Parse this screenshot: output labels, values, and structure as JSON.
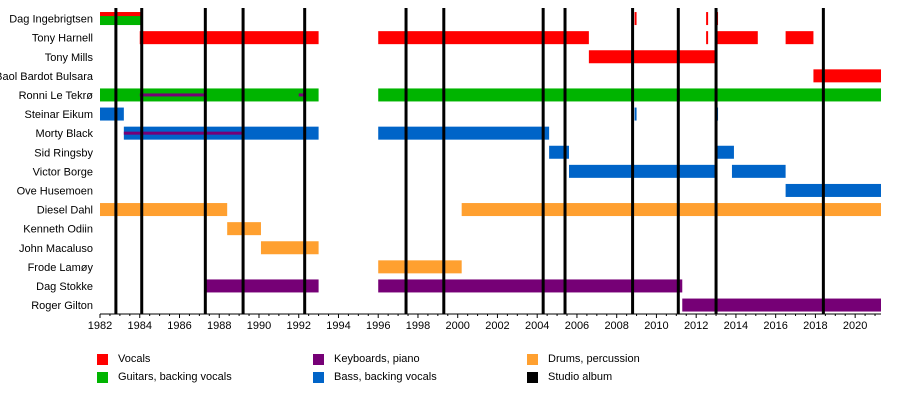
{
  "chart_data": {
    "type": "timeline",
    "title": "",
    "xlabel": "",
    "ylabel": "",
    "xlim": [
      1982,
      2021.3
    ],
    "x_ticks": [
      1982,
      1984,
      1986,
      1988,
      1990,
      1992,
      1994,
      1996,
      1998,
      2000,
      2002,
      2004,
      2006,
      2008,
      2010,
      2012,
      2014,
      2016,
      2018,
      2020
    ],
    "grid": false,
    "legend_placement": "bottom",
    "roles": [
      {
        "key": "vocals",
        "label": "Vocals",
        "color": "#ff0000"
      },
      {
        "key": "guitars",
        "label": "Guitars, backing vocals",
        "color": "#00b400"
      },
      {
        "key": "keyboards",
        "label": "Keyboards, piano",
        "color": "#760076"
      },
      {
        "key": "bass",
        "label": "Bass, backing vocals",
        "color": "#0064c8"
      },
      {
        "key": "drums",
        "label": "Drums, percussion",
        "color": "#ffa030"
      },
      {
        "key": "album",
        "label": "Studio album",
        "color": "#000000"
      }
    ],
    "members": [
      {
        "name": "Dag Ingebrigtsen",
        "spans": [
          {
            "role": "guitars",
            "start": 1982,
            "end": 1984.1
          },
          {
            "role": "vocals",
            "start": 1982,
            "end": 1984.1,
            "stripe": "top"
          },
          {
            "role": "vocals",
            "start": 2008.9,
            "end": 2009.0
          },
          {
            "role": "vocals",
            "start": 2012.5,
            "end": 2012.6
          },
          {
            "role": "vocals",
            "start": 2013.0,
            "end": 2013.1
          }
        ]
      },
      {
        "name": "Tony Harnell",
        "spans": [
          {
            "role": "vocals",
            "start": 1984.0,
            "end": 1993.0
          },
          {
            "role": "vocals",
            "start": 1996.0,
            "end": 2006.6
          },
          {
            "role": "vocals",
            "start": 2012.5,
            "end": 2012.6
          },
          {
            "role": "vocals",
            "start": 2013.0,
            "end": 2015.1
          },
          {
            "role": "vocals",
            "start": 2016.5,
            "end": 2017.9
          }
        ]
      },
      {
        "name": "Tony Mills",
        "spans": [
          {
            "role": "vocals",
            "start": 2006.6,
            "end": 2013.0
          }
        ]
      },
      {
        "name": "Baol Bardot Bulsara",
        "spans": [
          {
            "role": "vocals",
            "start": 2017.9,
            "end": 2021.3
          }
        ]
      },
      {
        "name": "Ronni Le Tekrø",
        "spans": [
          {
            "role": "guitars",
            "start": 1982,
            "end": 1993.0
          },
          {
            "role": "keyboards",
            "start": 1984.0,
            "end": 1987.3,
            "stripe": "mid"
          },
          {
            "role": "keyboards",
            "start": 1992.0,
            "end": 1992.3,
            "stripe": "mid"
          },
          {
            "role": "guitars",
            "start": 1996.0,
            "end": 2021.3
          }
        ]
      },
      {
        "name": "Steinar Eikum",
        "spans": [
          {
            "role": "bass",
            "start": 1982,
            "end": 1983.2
          },
          {
            "role": "bass",
            "start": 2008.9,
            "end": 2009.0
          },
          {
            "role": "bass",
            "start": 2013.0,
            "end": 2013.1
          }
        ]
      },
      {
        "name": "Morty Black",
        "spans": [
          {
            "role": "bass",
            "start": 1983.2,
            "end": 1993.0
          },
          {
            "role": "keyboards",
            "start": 1983.2,
            "end": 1989.2,
            "stripe": "mid"
          },
          {
            "role": "bass",
            "start": 1996.0,
            "end": 2004.6
          }
        ]
      },
      {
        "name": "Sid Ringsby",
        "spans": [
          {
            "role": "bass",
            "start": 2004.6,
            "end": 2005.6
          },
          {
            "role": "bass",
            "start": 2013.0,
            "end": 2013.9
          }
        ]
      },
      {
        "name": "Victor Borge",
        "spans": [
          {
            "role": "bass",
            "start": 2005.6,
            "end": 2013.0
          },
          {
            "role": "bass",
            "start": 2013.8,
            "end": 2016.5
          }
        ]
      },
      {
        "name": "Ove Husemoen",
        "spans": [
          {
            "role": "bass",
            "start": 2016.5,
            "end": 2021.3
          }
        ]
      },
      {
        "name": "Diesel Dahl",
        "spans": [
          {
            "role": "drums",
            "start": 1982,
            "end": 1988.4
          },
          {
            "role": "drums",
            "start": 2000.2,
            "end": 2021.3
          }
        ]
      },
      {
        "name": "Kenneth Odiin",
        "spans": [
          {
            "role": "drums",
            "start": 1988.4,
            "end": 1990.1
          }
        ]
      },
      {
        "name": "John Macaluso",
        "spans": [
          {
            "role": "drums",
            "start": 1990.1,
            "end": 1993.0
          }
        ]
      },
      {
        "name": "Frode Lamøy",
        "spans": [
          {
            "role": "drums",
            "start": 1996.0,
            "end": 2000.2
          }
        ]
      },
      {
        "name": "Dag Stokke",
        "spans": [
          {
            "role": "keyboards",
            "start": 1987.3,
            "end": 1993.0
          },
          {
            "role": "keyboards",
            "start": 1996.0,
            "end": 2011.3
          }
        ]
      },
      {
        "name": "Roger Gilton",
        "spans": [
          {
            "role": "keyboards",
            "start": 2011.3,
            "end": 2021.3
          }
        ]
      }
    ],
    "albums": [
      1982.8,
      1984.1,
      1987.3,
      1989.2,
      1992.3,
      1997.4,
      1999.3,
      2004.3,
      2005.4,
      2008.8,
      2011.1,
      2013.0,
      2018.4
    ]
  }
}
